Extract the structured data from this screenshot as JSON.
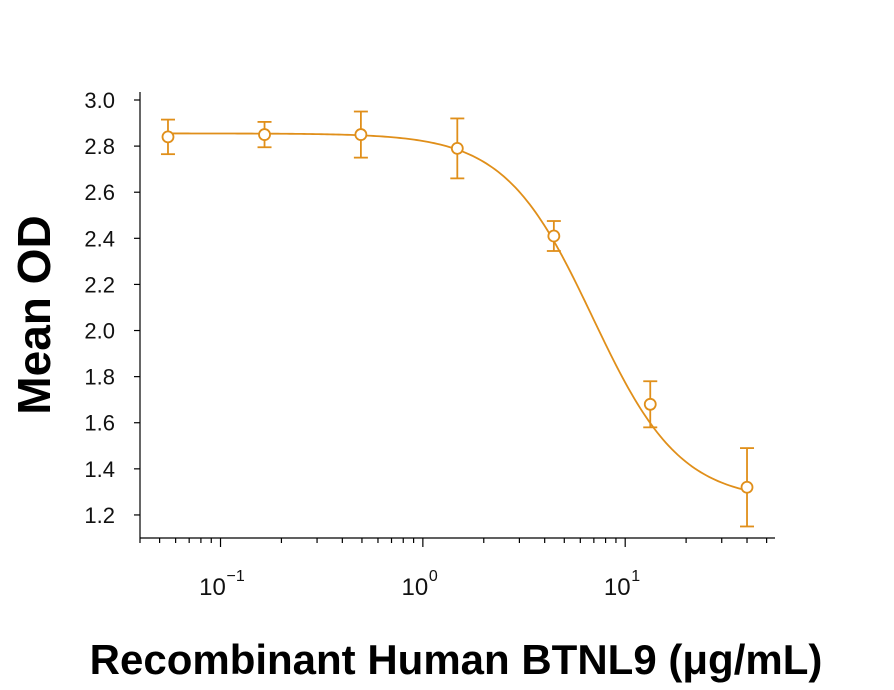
{
  "chart_data": {
    "type": "scatter",
    "title": "",
    "xlabel": "Recombinant Human BTNL9 (μg/mL)",
    "ylabel": "Mean OD",
    "xscale": "log",
    "xlim": [
      0.04,
      55
    ],
    "ylim": [
      1.1,
      3.0
    ],
    "yticks": [
      "1.2",
      "1.4",
      "1.6",
      "1.8",
      "2.0",
      "2.2",
      "2.4",
      "2.6",
      "2.8",
      "3.0"
    ],
    "xticks": [
      {
        "base": "10",
        "exp": "−1",
        "value": 0.1
      },
      {
        "base": "10",
        "exp": "0",
        "value": 1
      },
      {
        "base": "10",
        "exp": "1",
        "value": 10
      }
    ],
    "color": "#E08F1A",
    "grid": false,
    "legend": "none",
    "series": [
      {
        "x": [
          0.055,
          0.165,
          0.494,
          1.48,
          4.44,
          13.3,
          40.0
        ],
        "y": [
          2.84,
          2.85,
          2.85,
          2.79,
          2.41,
          1.68,
          1.32
        ],
        "error": [
          0.075,
          0.055,
          0.1,
          0.13,
          0.065,
          0.1,
          0.17
        ]
      }
    ],
    "fit": {
      "type": "4PL",
      "top": 2.855,
      "bottom": 1.26,
      "ec50": 6.9,
      "hill": 2.0
    }
  }
}
